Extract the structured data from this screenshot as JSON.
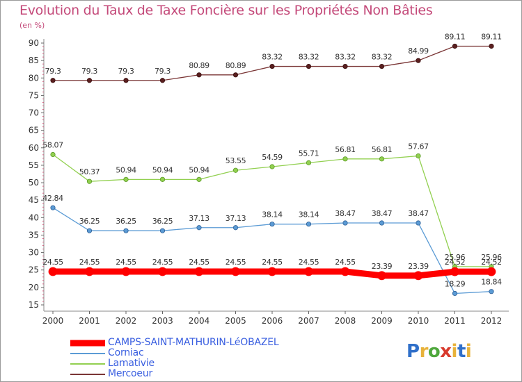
{
  "title": "Evolution du Taux de Taxe Foncière sur les Propriétés Non Bâties",
  "unit_label": "(en %)",
  "logo": {
    "letters": [
      "P",
      "r",
      "o",
      "x",
      "i",
      "t",
      "i"
    ],
    "colors": [
      "#2f6fc9",
      "#e8b23a",
      "#4fa83d",
      "#d83a2d",
      "#e8b23a",
      "#2f6fc9",
      "#e8b23a"
    ]
  },
  "chart_data": {
    "type": "line",
    "x": [
      "2000",
      "2001",
      "2002",
      "2003",
      "2004",
      "2005",
      "2006",
      "2007",
      "2008",
      "2009",
      "2010",
      "2011",
      "2012"
    ],
    "ylim": [
      15,
      90
    ],
    "yticks": [
      15,
      20,
      25,
      30,
      35,
      40,
      45,
      50,
      55,
      60,
      65,
      70,
      75,
      80,
      85,
      90
    ],
    "grid": false,
    "series": [
      {
        "name": "CAMPS-SAINT-MATHURIN-LéOBAZEL",
        "color": "#ff0000",
        "values": [
          24.55,
          24.55,
          24.55,
          24.55,
          24.55,
          24.55,
          24.55,
          24.55,
          24.55,
          23.39,
          23.39,
          24.52,
          24.52
        ]
      },
      {
        "name": "Corniac",
        "color": "#5b9bd5",
        "values": [
          42.84,
          36.25,
          36.25,
          36.25,
          37.13,
          37.13,
          38.14,
          38.14,
          38.47,
          38.47,
          38.47,
          18.29,
          18.84
        ]
      },
      {
        "name": "Lamativie",
        "color": "#92d050",
        "values": [
          58.07,
          50.37,
          50.94,
          50.94,
          50.94,
          53.55,
          54.59,
          55.71,
          56.81,
          56.81,
          57.67,
          25.96,
          25.96
        ]
      },
      {
        "name": "Mercoeur",
        "color": "#7a3535",
        "values": [
          79.3,
          79.3,
          79.3,
          79.3,
          80.89,
          80.89,
          83.32,
          83.32,
          83.32,
          83.32,
          84.99,
          89.11,
          89.11
        ]
      }
    ],
    "labels": [
      [
        "24.55",
        "24.55",
        "24.55",
        "24.55",
        "24.55",
        "24.55",
        "24.55",
        "24.55",
        "24.55",
        "23.39",
        "23.39",
        "24.52",
        "24.52"
      ],
      [
        "42.84",
        "36.25",
        "36.25",
        "36.25",
        "37.13",
        "37.13",
        "38.14",
        "38.14",
        "38.47",
        "38.47",
        "38.47",
        "18.29",
        "18.84"
      ],
      [
        "58.07",
        "50.37",
        "50.94",
        "50.94",
        "50.94",
        "53.55",
        "54.59",
        "55.71",
        "56.81",
        "56.81",
        "57.67",
        "25.96",
        "25.96"
      ],
      [
        "79.3",
        "79.3",
        "79.3",
        "79.3",
        "80.89",
        "80.89",
        "83.32",
        "83.32",
        "83.32",
        "83.32",
        "84.99",
        "89.11",
        "89.11"
      ]
    ]
  }
}
